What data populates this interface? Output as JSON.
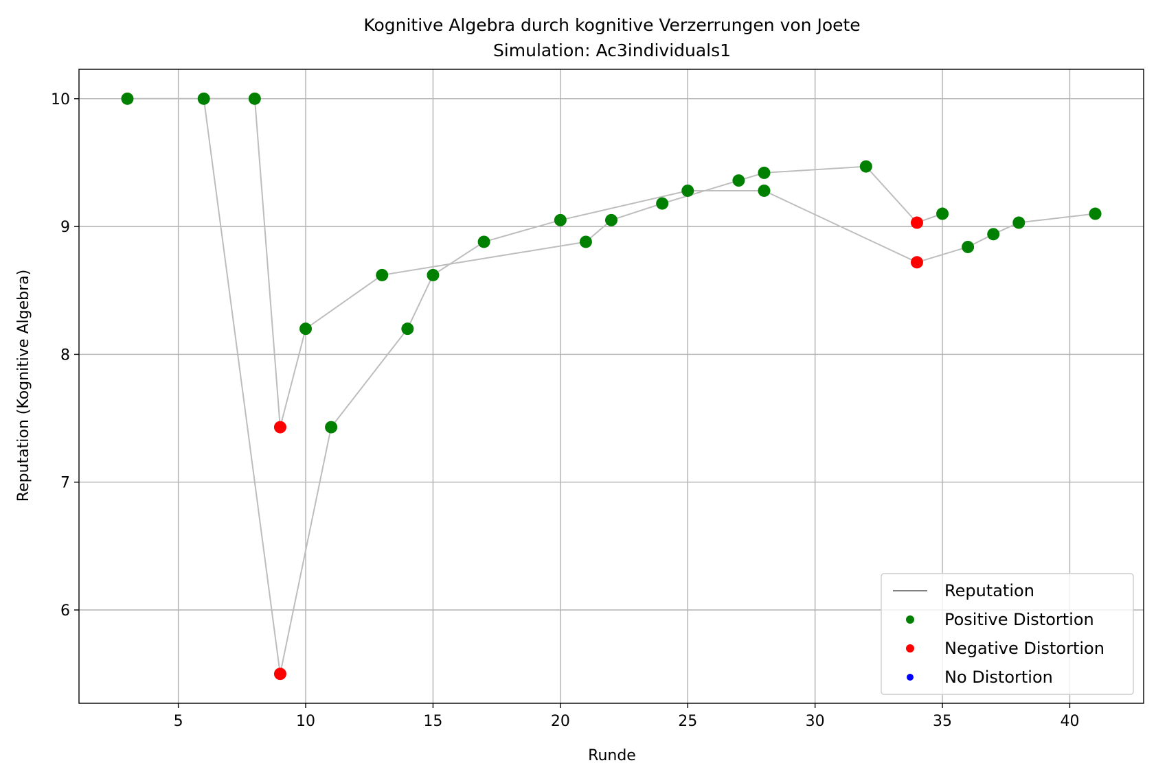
{
  "chart_data": {
    "type": "scatter",
    "title": "Kognitive Algebra durch kognitive Verzerrungen von Joete",
    "subtitle": "Simulation: Ac3individuals1",
    "xlabel": "Runde",
    "ylabel": "Reputation (Kognitive Algebra)",
    "xlim": [
      1.1,
      42.9
    ],
    "ylim": [
      5.27,
      10.23
    ],
    "xticks": [
      5,
      10,
      15,
      20,
      25,
      30,
      35,
      40
    ],
    "yticks": [
      6,
      7,
      8,
      9,
      10
    ],
    "grid": true,
    "legend_position": "lower-right",
    "legend": [
      {
        "label": "Reputation",
        "kind": "line",
        "color": "#808080"
      },
      {
        "label": "Positive Distortion",
        "kind": "marker",
        "color": "#008000"
      },
      {
        "label": "Negative Distortion",
        "kind": "marker",
        "color": "#ff0000"
      },
      {
        "label": "No Distortion",
        "kind": "marker",
        "color": "#0000ff"
      }
    ],
    "line_color": "#bdbdbd",
    "series": [
      {
        "points": [
          {
            "x": 3,
            "y": 10.0,
            "d": "pos"
          },
          {
            "x": 8,
            "y": 10.0,
            "d": "pos"
          },
          {
            "x": 9,
            "y": 7.43,
            "d": "neg"
          },
          {
            "x": 10,
            "y": 8.2,
            "d": "pos"
          },
          {
            "x": 13,
            "y": 8.62,
            "d": "pos"
          },
          {
            "x": 21,
            "y": 8.88,
            "d": "pos"
          },
          {
            "x": 22,
            "y": 9.05,
            "d": "pos"
          },
          {
            "x": 24,
            "y": 9.18,
            "d": "pos"
          },
          {
            "x": 27,
            "y": 9.36,
            "d": "pos"
          },
          {
            "x": 28,
            "y": 9.42,
            "d": "pos"
          },
          {
            "x": 32,
            "y": 9.47,
            "d": "pos"
          },
          {
            "x": 34,
            "y": 9.03,
            "d": "neg"
          },
          {
            "x": 35,
            "y": 9.1,
            "d": "pos"
          }
        ]
      },
      {
        "points": [
          {
            "x": 6,
            "y": 10.0,
            "d": "pos"
          },
          {
            "x": 9,
            "y": 5.5,
            "d": "neg"
          },
          {
            "x": 11,
            "y": 7.43,
            "d": "pos"
          },
          {
            "x": 14,
            "y": 8.2,
            "d": "pos"
          },
          {
            "x": 15,
            "y": 8.62,
            "d": "pos"
          },
          {
            "x": 17,
            "y": 8.88,
            "d": "pos"
          },
          {
            "x": 20,
            "y": 9.05,
            "d": "pos"
          },
          {
            "x": 25,
            "y": 9.28,
            "d": "pos"
          },
          {
            "x": 28,
            "y": 9.28,
            "d": "pos"
          },
          {
            "x": 34,
            "y": 8.72,
            "d": "neg"
          },
          {
            "x": 36,
            "y": 8.84,
            "d": "pos"
          },
          {
            "x": 37,
            "y": 8.94,
            "d": "pos"
          },
          {
            "x": 38,
            "y": 9.03,
            "d": "pos"
          },
          {
            "x": 41,
            "y": 9.1,
            "d": "pos"
          }
        ]
      }
    ]
  }
}
